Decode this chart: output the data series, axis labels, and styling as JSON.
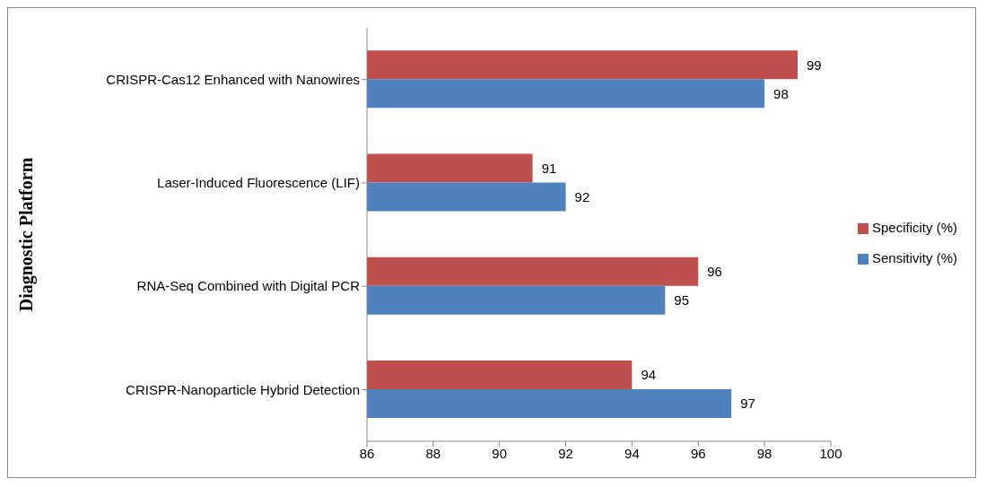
{
  "chart_data": {
    "type": "bar",
    "orientation": "horizontal",
    "ylabel": "Diagnostic Platform",
    "categories": [
      "CRISPR-Cas12 Enhanced with Nanowires",
      "Laser-Induced Fluorescence (LIF)",
      "RNA-Seq Combined with Digital PCR",
      "CRISPR-Nanoparticle Hybrid Detection"
    ],
    "series": [
      {
        "name": "Specificity (%)",
        "color": "#c0504d",
        "values": [
          99,
          91,
          96,
          94
        ]
      },
      {
        "name": "Sensitivity (%)",
        "color": "#4f81bd",
        "values": [
          98,
          92,
          95,
          97
        ]
      }
    ],
    "xlim": [
      86,
      100
    ],
    "xticks": [
      86,
      88,
      90,
      92,
      94,
      96,
      98,
      100
    ],
    "data_labels": true,
    "legend": "right",
    "grid": false
  }
}
